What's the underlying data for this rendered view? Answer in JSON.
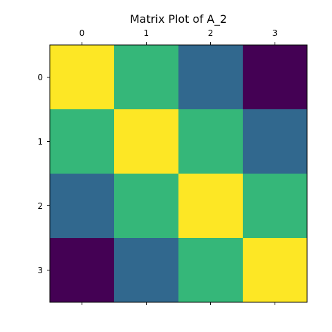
{
  "chart_data": {
    "type": "heatmap",
    "title": "Matrix Plot of A_2",
    "x_ticks": [
      "0",
      "1",
      "2",
      "3"
    ],
    "y_ticks": [
      "0",
      "1",
      "2",
      "3"
    ],
    "x_tick_position": "top-and-bottom",
    "colormap": "viridis",
    "value_range": [
      0,
      3
    ],
    "matrix": [
      [
        3,
        2,
        1,
        0
      ],
      [
        2,
        3,
        2,
        1
      ],
      [
        1,
        2,
        3,
        2
      ],
      [
        0,
        1,
        2,
        3
      ]
    ],
    "colors": {
      "0": "#440154",
      "1": "#31688e",
      "2": "#35b779",
      "3": "#fde725"
    },
    "grid": false
  }
}
